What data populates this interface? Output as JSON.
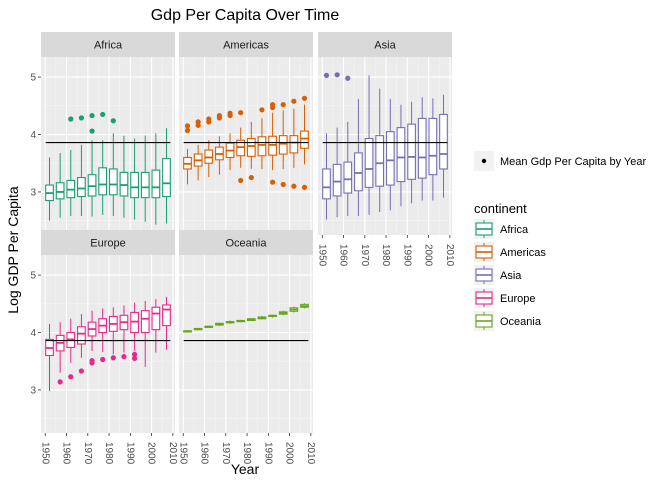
{
  "chart_data": {
    "type": "box",
    "title": "Gdp Per Capita Over Time",
    "xlabel": "Year",
    "ylabel": "Log GDP Per Capita",
    "ylim": [
      2.25,
      5.35
    ],
    "xlim": [
      1948,
      2011
    ],
    "y_ticks": [
      "3",
      "4",
      "5"
    ],
    "x_ticks": [
      "1950",
      "1960",
      "1970",
      "1980",
      "1990",
      "2000",
      "2010"
    ],
    "years": [
      1952,
      1957,
      1962,
      1967,
      1972,
      1977,
      1982,
      1987,
      1992,
      1997,
      2002,
      2007
    ],
    "mean_label": "Mean Gdp Per Capita by Year",
    "mean_value": 3.86,
    "legend_title": "continent",
    "grid": true,
    "legend_position": "right",
    "panels": [
      {
        "name": "Africa",
        "color": "#1b9e77",
        "boxes": [
          {
            "min": 2.5,
            "q1": 2.85,
            "med": 2.98,
            "q3": 3.12,
            "max": 3.6,
            "outliers": []
          },
          {
            "min": 2.55,
            "q1": 2.88,
            "med": 3.0,
            "q3": 3.16,
            "max": 3.68,
            "outliers": []
          },
          {
            "min": 2.58,
            "q1": 2.9,
            "med": 3.04,
            "q3": 3.2,
            "max": 3.73,
            "outliers": [
              4.27
            ]
          },
          {
            "min": 2.58,
            "q1": 2.92,
            "med": 3.06,
            "q3": 3.25,
            "max": 3.82,
            "outliers": [
              4.29
            ]
          },
          {
            "min": 2.57,
            "q1": 2.93,
            "med": 3.1,
            "q3": 3.3,
            "max": 3.9,
            "outliers": [
              4.06,
              4.33
            ]
          },
          {
            "min": 2.6,
            "q1": 2.95,
            "med": 3.13,
            "q3": 3.42,
            "max": 3.9,
            "outliers": [
              4.35
            ]
          },
          {
            "min": 2.58,
            "q1": 2.95,
            "med": 3.13,
            "q3": 3.4,
            "max": 4.02,
            "outliers": [
              4.24
            ]
          },
          {
            "min": 2.55,
            "q1": 2.93,
            "med": 3.12,
            "q3": 3.34,
            "max": 3.98,
            "outliers": []
          },
          {
            "min": 2.52,
            "q1": 2.9,
            "med": 3.08,
            "q3": 3.34,
            "max": 3.93,
            "outliers": []
          },
          {
            "min": 2.48,
            "q1": 2.9,
            "med": 3.08,
            "q3": 3.34,
            "max": 3.98,
            "outliers": []
          },
          {
            "min": 2.43,
            "q1": 2.9,
            "med": 3.08,
            "q3": 3.38,
            "max": 4.02,
            "outliers": []
          },
          {
            "min": 2.45,
            "q1": 2.92,
            "med": 3.15,
            "q3": 3.58,
            "max": 4.11,
            "outliers": []
          }
        ]
      },
      {
        "name": "Americas",
        "color": "#d95f02",
        "boxes": [
          {
            "min": 3.13,
            "q1": 3.4,
            "med": 3.49,
            "q3": 3.6,
            "max": 3.75,
            "outliers": [
              4.07,
              4.15
            ]
          },
          {
            "min": 3.2,
            "q1": 3.45,
            "med": 3.55,
            "q3": 3.66,
            "max": 3.82,
            "outliers": [
              4.16,
              4.22
            ]
          },
          {
            "min": 3.26,
            "q1": 3.5,
            "med": 3.6,
            "q3": 3.73,
            "max": 3.9,
            "outliers": [
              4.22,
              4.27
            ]
          },
          {
            "min": 3.3,
            "q1": 3.56,
            "med": 3.66,
            "q3": 3.78,
            "max": 3.97,
            "outliers": [
              4.29,
              4.33
            ]
          },
          {
            "min": 3.38,
            "q1": 3.6,
            "med": 3.72,
            "q3": 3.85,
            "max": 4.02,
            "outliers": [
              4.33,
              4.37
            ]
          },
          {
            "min": 3.42,
            "q1": 3.63,
            "med": 3.78,
            "q3": 3.9,
            "max": 4.12,
            "outliers": [
              3.2,
              4.38
            ]
          },
          {
            "min": 3.4,
            "q1": 3.62,
            "med": 3.8,
            "q3": 3.93,
            "max": 4.22,
            "outliers": [
              3.25
            ]
          },
          {
            "min": 3.4,
            "q1": 3.63,
            "med": 3.82,
            "q3": 3.96,
            "max": 4.28,
            "outliers": [
              4.43
            ]
          },
          {
            "min": 3.38,
            "q1": 3.64,
            "med": 3.82,
            "q3": 3.97,
            "max": 4.38,
            "outliers": [
              3.17,
              4.47,
              4.52
            ]
          },
          {
            "min": 3.4,
            "q1": 3.66,
            "med": 3.84,
            "q3": 3.98,
            "max": 4.42,
            "outliers": [
              3.13,
              4.52
            ]
          },
          {
            "min": 3.42,
            "q1": 3.68,
            "med": 3.86,
            "q3": 3.98,
            "max": 4.45,
            "outliers": [
              3.1,
              4.58
            ]
          },
          {
            "min": 3.48,
            "q1": 3.76,
            "med": 3.93,
            "q3": 4.06,
            "max": 4.52,
            "outliers": [
              3.08,
              4.63
            ]
          }
        ]
      },
      {
        "name": "Asia",
        "color": "#7570b3",
        "boxes": [
          {
            "min": 2.52,
            "q1": 2.88,
            "med": 3.08,
            "q3": 3.4,
            "max": 4.02,
            "outliers": [
              5.03
            ]
          },
          {
            "min": 2.56,
            "q1": 2.93,
            "med": 3.18,
            "q3": 3.48,
            "max": 4.12,
            "outliers": [
              5.04
            ]
          },
          {
            "min": 2.58,
            "q1": 2.98,
            "med": 3.22,
            "q3": 3.52,
            "max": 4.22,
            "outliers": [
              4.98
            ]
          },
          {
            "min": 2.58,
            "q1": 3.02,
            "med": 3.33,
            "q3": 3.68,
            "max": 4.62,
            "outliers": []
          },
          {
            "min": 2.6,
            "q1": 3.08,
            "med": 3.4,
            "q3": 3.93,
            "max": 5.03,
            "outliers": []
          },
          {
            "min": 2.65,
            "q1": 3.1,
            "med": 3.5,
            "q3": 3.98,
            "max": 4.8,
            "outliers": []
          },
          {
            "min": 2.68,
            "q1": 3.12,
            "med": 3.55,
            "q3": 4.05,
            "max": 4.62,
            "outliers": []
          },
          {
            "min": 2.75,
            "q1": 3.18,
            "med": 3.6,
            "q3": 4.12,
            "max": 4.52,
            "outliers": []
          },
          {
            "min": 2.8,
            "q1": 3.22,
            "med": 3.61,
            "q3": 4.18,
            "max": 4.57,
            "outliers": []
          },
          {
            "min": 2.85,
            "q1": 3.24,
            "med": 3.6,
            "q3": 4.28,
            "max": 4.65,
            "outliers": []
          },
          {
            "min": 2.85,
            "q1": 3.3,
            "med": 3.63,
            "q3": 4.28,
            "max": 4.63,
            "outliers": []
          },
          {
            "min": 2.9,
            "q1": 3.4,
            "med": 3.66,
            "q3": 4.35,
            "max": 4.69,
            "outliers": []
          }
        ]
      },
      {
        "name": "Europe",
        "color": "#e7298a",
        "boxes": [
          {
            "min": 2.98,
            "q1": 3.6,
            "med": 3.73,
            "q3": 3.88,
            "max": 4.15,
            "outliers": []
          },
          {
            "min": 3.3,
            "q1": 3.68,
            "med": 3.82,
            "q3": 3.95,
            "max": 4.18,
            "outliers": [
              3.14
            ]
          },
          {
            "min": 3.47,
            "q1": 3.74,
            "med": 3.88,
            "q3": 4.0,
            "max": 4.24,
            "outliers": [
              3.23
            ]
          },
          {
            "min": 3.56,
            "q1": 3.8,
            "med": 3.98,
            "q3": 4.1,
            "max": 4.32,
            "outliers": [
              3.33
            ]
          },
          {
            "min": 3.68,
            "q1": 3.94,
            "med": 4.06,
            "q3": 4.18,
            "max": 4.38,
            "outliers": [
              3.47,
              3.51
            ]
          },
          {
            "min": 3.66,
            "q1": 4.0,
            "med": 4.12,
            "q3": 4.24,
            "max": 4.42,
            "outliers": [
              3.53
            ]
          },
          {
            "min": 3.62,
            "q1": 4.02,
            "med": 4.15,
            "q3": 4.28,
            "max": 4.44,
            "outliers": [
              3.56
            ]
          },
          {
            "min": 3.65,
            "q1": 4.05,
            "med": 4.18,
            "q3": 4.3,
            "max": 4.47,
            "outliers": [
              3.58
            ]
          },
          {
            "min": 3.68,
            "q1": 4.0,
            "med": 4.19,
            "q3": 4.35,
            "max": 4.52,
            "outliers": [
              3.55,
              3.62
            ]
          },
          {
            "min": 3.4,
            "q1": 4.0,
            "med": 4.24,
            "q3": 4.38,
            "max": 4.55,
            "outliers": []
          },
          {
            "min": 3.65,
            "q1": 4.05,
            "med": 4.33,
            "q3": 4.44,
            "max": 4.58,
            "outliers": []
          },
          {
            "min": 3.7,
            "q1": 4.12,
            "med": 4.4,
            "q3": 4.48,
            "max": 4.62,
            "outliers": []
          }
        ]
      },
      {
        "name": "Oceania",
        "color": "#66a61e",
        "boxes": [
          {
            "min": 4.0,
            "q1": 4.01,
            "med": 4.02,
            "q3": 4.03,
            "max": 4.04,
            "outliers": []
          },
          {
            "min": 4.04,
            "q1": 4.05,
            "med": 4.06,
            "q3": 4.07,
            "max": 4.08,
            "outliers": []
          },
          {
            "min": 4.08,
            "q1": 4.09,
            "med": 4.1,
            "q3": 4.11,
            "max": 4.12,
            "outliers": []
          },
          {
            "min": 4.11,
            "q1": 4.13,
            "med": 4.15,
            "q3": 4.16,
            "max": 4.17,
            "outliers": []
          },
          {
            "min": 4.15,
            "q1": 4.17,
            "med": 4.18,
            "q3": 4.19,
            "max": 4.21,
            "outliers": []
          },
          {
            "min": 4.18,
            "q1": 4.19,
            "med": 4.2,
            "q3": 4.21,
            "max": 4.22,
            "outliers": []
          },
          {
            "min": 4.2,
            "q1": 4.21,
            "med": 4.23,
            "q3": 4.24,
            "max": 4.25,
            "outliers": []
          },
          {
            "min": 4.23,
            "q1": 4.24,
            "med": 4.26,
            "q3": 4.27,
            "max": 4.29,
            "outliers": []
          },
          {
            "min": 4.26,
            "q1": 4.28,
            "med": 4.29,
            "q3": 4.3,
            "max": 4.31,
            "outliers": []
          },
          {
            "min": 4.3,
            "q1": 4.32,
            "med": 4.34,
            "q3": 4.36,
            "max": 4.38,
            "outliers": []
          },
          {
            "min": 4.35,
            "q1": 4.37,
            "med": 4.4,
            "q3": 4.43,
            "max": 4.45,
            "outliers": []
          },
          {
            "min": 4.42,
            "q1": 4.44,
            "med": 4.46,
            "q3": 4.49,
            "max": 4.51,
            "outliers": []
          }
        ]
      }
    ]
  }
}
